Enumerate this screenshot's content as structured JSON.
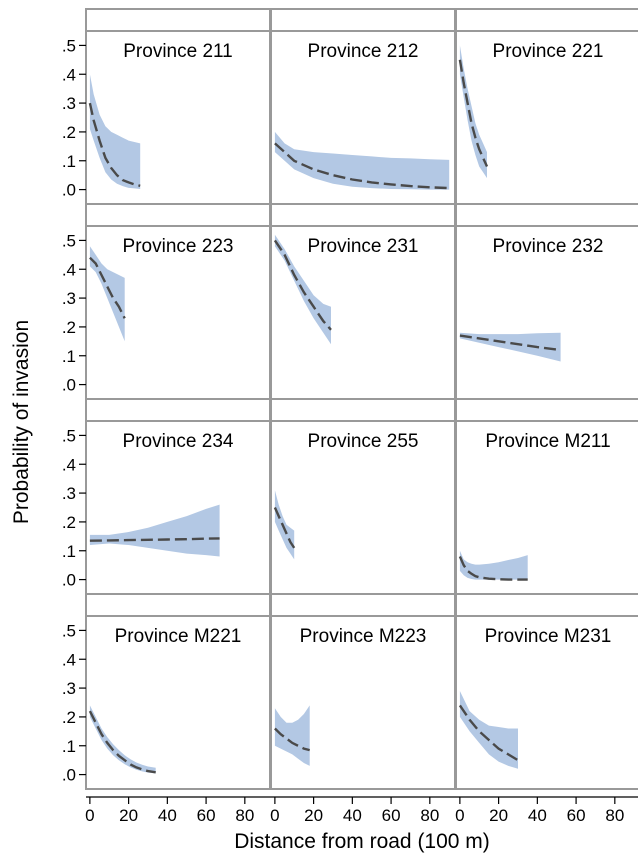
{
  "chart_data": {
    "type": "line",
    "xlabel": "Distance from road (100 m)",
    "ylabel": "Probability of invasion",
    "x_ticks": [
      0,
      20,
      40,
      60,
      80
    ],
    "x_tick_labels": [
      "0",
      "20",
      "40",
      "60",
      "80"
    ],
    "y_ticks": [
      0,
      0.1,
      0.2,
      0.3,
      0.4,
      0.5
    ],
    "y_tick_labels": [
      ".0",
      ".1",
      ".2",
      ".3",
      ".4",
      ".5"
    ],
    "xlim": [
      -2,
      93
    ],
    "ylim": [
      -0.05,
      0.55
    ],
    "layout": "4 rows x 3 columns, shared axes",
    "colors": {
      "band": "#b3c8e4",
      "line": "#4a4a4a",
      "frame": "#999999"
    },
    "panels": [
      {
        "title": "Province 211",
        "x": [
          0,
          2,
          5,
          8,
          11,
          14,
          17,
          20,
          23,
          26
        ],
        "y": [
          0.3,
          0.24,
          0.17,
          0.11,
          0.075,
          0.05,
          0.033,
          0.025,
          0.018,
          0.013
        ],
        "lower": [
          0.21,
          0.17,
          0.11,
          0.06,
          0.035,
          0.02,
          0.012,
          0.006,
          0.004,
          0.002
        ],
        "upper": [
          0.4,
          0.33,
          0.26,
          0.22,
          0.2,
          0.19,
          0.18,
          0.17,
          0.165,
          0.16
        ]
      },
      {
        "title": "Province 212",
        "x": [
          0,
          5,
          10,
          20,
          30,
          40,
          50,
          60,
          70,
          80,
          90
        ],
        "y": [
          0.16,
          0.13,
          0.1,
          0.07,
          0.05,
          0.035,
          0.025,
          0.018,
          0.012,
          0.008,
          0.005
        ],
        "lower": [
          0.13,
          0.1,
          0.07,
          0.04,
          0.02,
          0.01,
          0.005,
          0.002,
          0.001,
          0.0,
          0.0
        ],
        "upper": [
          0.2,
          0.16,
          0.14,
          0.13,
          0.125,
          0.12,
          0.115,
          0.11,
          0.108,
          0.105,
          0.103
        ]
      },
      {
        "title": "Province 221",
        "x": [
          0,
          2,
          4,
          6,
          8,
          10,
          12,
          14
        ],
        "y": [
          0.45,
          0.37,
          0.3,
          0.23,
          0.18,
          0.14,
          0.11,
          0.08
        ],
        "lower": [
          0.4,
          0.32,
          0.24,
          0.17,
          0.12,
          0.08,
          0.06,
          0.04
        ],
        "upper": [
          0.5,
          0.42,
          0.35,
          0.29,
          0.23,
          0.19,
          0.16,
          0.13
        ]
      },
      {
        "title": "Province 223",
        "x": [
          0,
          3,
          6,
          9,
          12,
          15,
          18
        ],
        "y": [
          0.44,
          0.42,
          0.38,
          0.34,
          0.3,
          0.27,
          0.23
        ],
        "lower": [
          0.41,
          0.39,
          0.35,
          0.3,
          0.25,
          0.2,
          0.15
        ],
        "upper": [
          0.48,
          0.45,
          0.42,
          0.4,
          0.39,
          0.38,
          0.37
        ]
      },
      {
        "title": "Province 231",
        "x": [
          0,
          5,
          10,
          15,
          20,
          25,
          29
        ],
        "y": [
          0.5,
          0.45,
          0.38,
          0.32,
          0.27,
          0.22,
          0.19
        ],
        "lower": [
          0.48,
          0.43,
          0.36,
          0.29,
          0.23,
          0.18,
          0.14
        ],
        "upper": [
          0.52,
          0.47,
          0.41,
          0.36,
          0.31,
          0.28,
          0.27
        ]
      },
      {
        "title": "Province 232",
        "x": [
          0,
          10,
          20,
          30,
          40,
          52
        ],
        "y": [
          0.17,
          0.16,
          0.15,
          0.14,
          0.13,
          0.12
        ],
        "lower": [
          0.16,
          0.145,
          0.13,
          0.115,
          0.1,
          0.08
        ],
        "upper": [
          0.18,
          0.175,
          0.175,
          0.175,
          0.178,
          0.18
        ]
      },
      {
        "title": "Province 234",
        "x": [
          0,
          10,
          20,
          30,
          40,
          50,
          60,
          67
        ],
        "y": [
          0.135,
          0.136,
          0.137,
          0.138,
          0.139,
          0.14,
          0.142,
          0.143
        ],
        "lower": [
          0.12,
          0.125,
          0.12,
          0.11,
          0.1,
          0.09,
          0.085,
          0.08
        ],
        "upper": [
          0.155,
          0.155,
          0.165,
          0.18,
          0.2,
          0.22,
          0.245,
          0.26
        ]
      },
      {
        "title": "Province 255",
        "x": [
          0,
          2,
          4,
          6,
          8,
          10
        ],
        "y": [
          0.25,
          0.22,
          0.19,
          0.16,
          0.13,
          0.11
        ],
        "lower": [
          0.2,
          0.17,
          0.14,
          0.11,
          0.09,
          0.07
        ],
        "upper": [
          0.31,
          0.26,
          0.22,
          0.19,
          0.18,
          0.17
        ]
      },
      {
        "title": "Province M211",
        "x": [
          0,
          2,
          4,
          6,
          8,
          10,
          15,
          20,
          25,
          30,
          35
        ],
        "y": [
          0.08,
          0.05,
          0.03,
          0.02,
          0.012,
          0.008,
          0.003,
          0.001,
          0.0,
          0.0,
          0.0
        ],
        "lower": [
          0.03,
          0.015,
          0.006,
          0.002,
          0.0,
          0.0,
          0.0,
          0.0,
          0.0,
          0.0,
          0.0
        ],
        "upper": [
          0.1,
          0.07,
          0.06,
          0.055,
          0.052,
          0.052,
          0.055,
          0.06,
          0.068,
          0.075,
          0.085
        ]
      },
      {
        "title": "Province M221",
        "x": [
          0,
          3,
          6,
          9,
          12,
          15,
          18,
          21,
          24,
          27,
          30,
          34
        ],
        "y": [
          0.22,
          0.18,
          0.14,
          0.11,
          0.085,
          0.065,
          0.05,
          0.035,
          0.025,
          0.018,
          0.012,
          0.008
        ],
        "lower": [
          0.2,
          0.16,
          0.12,
          0.09,
          0.067,
          0.05,
          0.036,
          0.025,
          0.017,
          0.011,
          0.007,
          0.004
        ],
        "upper": [
          0.24,
          0.2,
          0.16,
          0.13,
          0.105,
          0.085,
          0.067,
          0.053,
          0.042,
          0.034,
          0.028,
          0.024
        ]
      },
      {
        "title": "Province M223",
        "x": [
          0,
          3,
          6,
          9,
          12,
          15,
          18
        ],
        "y": [
          0.16,
          0.14,
          0.125,
          0.11,
          0.1,
          0.09,
          0.085
        ],
        "lower": [
          0.1,
          0.09,
          0.08,
          0.07,
          0.055,
          0.04,
          0.03
        ],
        "upper": [
          0.23,
          0.2,
          0.18,
          0.18,
          0.19,
          0.21,
          0.24
        ]
      },
      {
        "title": "Province M231",
        "x": [
          0,
          5,
          10,
          15,
          20,
          25,
          30
        ],
        "y": [
          0.24,
          0.19,
          0.15,
          0.12,
          0.09,
          0.07,
          0.05
        ],
        "lower": [
          0.2,
          0.15,
          0.11,
          0.07,
          0.045,
          0.03,
          0.02
        ],
        "upper": [
          0.29,
          0.22,
          0.19,
          0.17,
          0.165,
          0.16,
          0.16
        ]
      }
    ]
  }
}
